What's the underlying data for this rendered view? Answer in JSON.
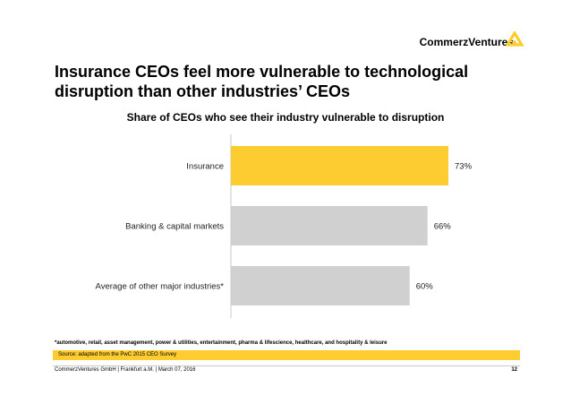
{
  "header": {
    "brand_name": "CommerzVentures",
    "title": "Insurance CEOs feel more vulnerable to technological disruption than other industries’ CEOs"
  },
  "colors": {
    "highlight": "#fccc30",
    "bar_default": "#d0d0d0",
    "axis": "#c8c8c8"
  },
  "chart_data": {
    "type": "bar",
    "orientation": "horizontal",
    "title": "Share of CEOs who see their industry vulnerable to disruption",
    "categories": [
      "Insurance",
      "Banking & capital markets",
      "Average of other major industries*"
    ],
    "values": [
      73,
      66,
      60
    ],
    "value_labels": [
      "73%",
      "66%",
      "60%"
    ],
    "highlighted": [
      true,
      false,
      false
    ],
    "unit": "%",
    "xlim": [
      0,
      100
    ],
    "xlabel": "",
    "ylabel": ""
  },
  "footer": {
    "footnote": "*automotive, retail, asset management, power & utilities, entertainment, pharma & lifescience, healthcare, and hospitality & leisure",
    "source": "Source: adapted from the PwC 2015 CEO Survey",
    "company_line": "CommerzVentures GmbH  |  Frankfurt a.M.  |  March 07, 2016",
    "page_number": "12"
  }
}
